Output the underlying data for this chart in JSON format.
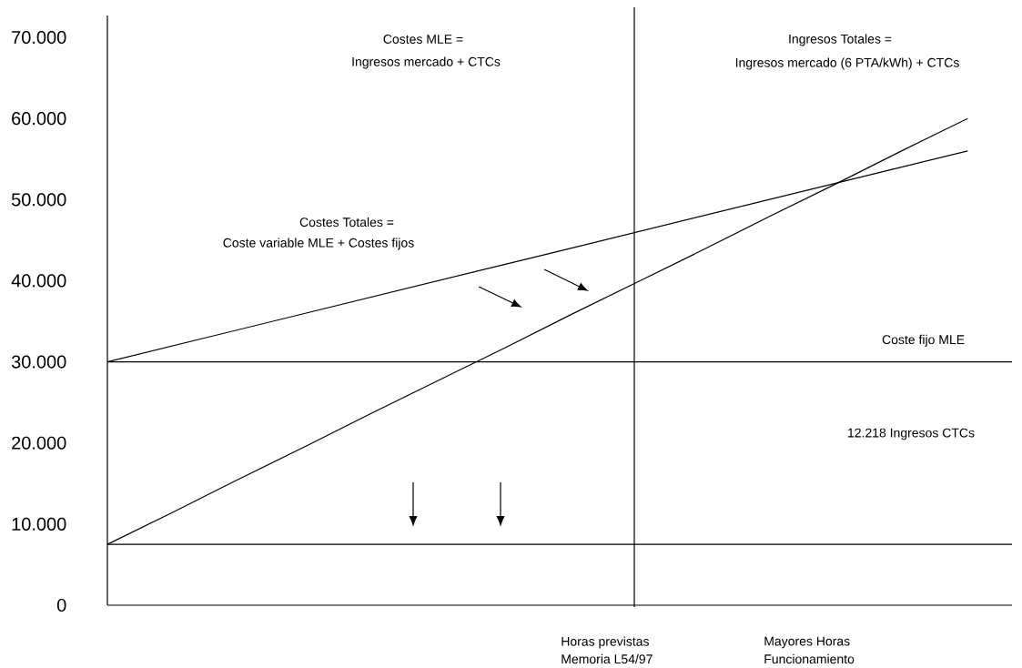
{
  "chart_data": {
    "type": "line",
    "categories": [
      null,
      null,
      null,
      null,
      null,
      null,
      null,
      null,
      null,
      null,
      null,
      null,
      null,
      null
    ],
    "series": [
      {
        "color": "#000000",
        "values": [
          30000,
          32000,
          34000,
          36000,
          38000,
          40000,
          42000,
          44000,
          46000,
          48000,
          50000,
          52000,
          54000,
          56000
        ]
      },
      {
        "color": "#000000",
        "values": [
          7500,
          11500,
          15600,
          19600,
          23700,
          27700,
          31700,
          35800,
          39800,
          43800,
          47900,
          51900,
          56000,
          60000
        ]
      }
    ],
    "ylim": [
      0,
      72700
    ],
    "yticks": [
      0,
      {
        "value": 10000,
        "label": "10.000"
      },
      {
        "value": 20000,
        "label": "20.000"
      },
      {
        "value": 30000,
        "label": "30.000"
      },
      {
        "value": 40000,
        "label": "40.000"
      },
      {
        "value": 50000,
        "label": "50.000"
      },
      {
        "value": 60000,
        "label": "60.000"
      },
      {
        "value": 70000,
        "label": "70.000"
      }
    ],
    "tick_labels": "y",
    "ref_lines": [
      {
        "axis": "y",
        "value": 30000,
        "label": "Coste fijo MLE"
      },
      {
        "axis": "y",
        "value": 7500
      }
    ],
    "annotations": [
      "Costes MLE =",
      "Ingresos mercado + CTCs",
      "Ingresos Totales =",
      "Ingresos mercado (6 PTA/kWh) + CTCs",
      "Costes Totales =",
      "Coste variable MLE + Costes fijos",
      "12.218 Ingresos CTCs",
      "Horas previstas",
      "Memoria L54/97",
      "Mayores Horas",
      "Funcionamiento"
    ]
  }
}
